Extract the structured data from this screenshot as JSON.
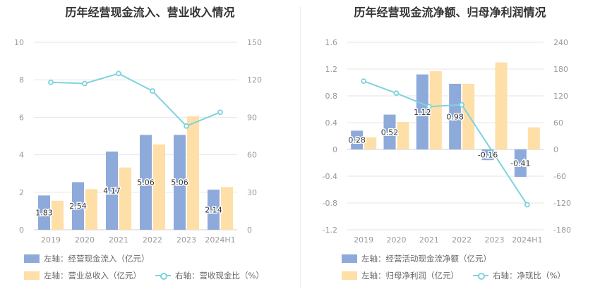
{
  "chart_data": [
    {
      "type": "bar",
      "title": "历年经营现金流入、营业收入情况",
      "categories": [
        "2019",
        "2020",
        "2021",
        "2022",
        "2023",
        "2024H1"
      ],
      "y_left": {
        "ticks": [
          "0",
          "2",
          "4",
          "6",
          "8",
          "10"
        ],
        "ylim": [
          0,
          10
        ]
      },
      "y_right": {
        "ticks": [
          "0",
          "30",
          "60",
          "90",
          "120",
          "150"
        ],
        "ylim": [
          0,
          150
        ]
      },
      "grid": true,
      "legend_position": "bottom",
      "series": [
        {
          "name": "左轴：经营现金流入（亿元）",
          "type": "bar",
          "axis": "left",
          "color": "#8eaadb",
          "values": [
            1.83,
            2.54,
            4.17,
            5.06,
            5.06,
            2.14
          ],
          "labels": [
            "1.83",
            "2.54",
            "4.17",
            "5.06",
            "5.06",
            "2.14"
          ]
        },
        {
          "name": "左轴：营业总收入（亿元）",
          "type": "bar",
          "axis": "left",
          "color": "#ffdfa8",
          "values": [
            1.55,
            2.17,
            3.32,
            4.55,
            6.05,
            2.28
          ]
        },
        {
          "name": "右轴：营收现金比（%）",
          "type": "line",
          "axis": "right",
          "color": "#7fd3dc",
          "values": [
            118,
            117,
            125,
            111,
            83,
            94
          ]
        }
      ]
    },
    {
      "type": "bar",
      "title": "历年经营现金流净额、归母净利润情况",
      "categories": [
        "2019",
        "2020",
        "2021",
        "2022",
        "2023",
        "2024H1"
      ],
      "y_left": {
        "ticks": [
          "-1.2",
          "-0.8",
          "-0.4",
          "0",
          "0.4",
          "0.8",
          "1.2",
          "1.6"
        ],
        "ylim": [
          -1.2,
          1.6
        ]
      },
      "y_right": {
        "ticks": [
          "-180",
          "-120",
          "-60",
          "0",
          "60",
          "120",
          "180",
          "240"
        ],
        "ylim": [
          -180,
          240
        ]
      },
      "grid": true,
      "legend_position": "bottom",
      "series": [
        {
          "name": "左轴：经营活动现金流净额（亿元）",
          "type": "bar",
          "axis": "left",
          "color": "#8eaadb",
          "values": [
            0.28,
            0.52,
            1.12,
            0.98,
            -0.16,
            -0.41
          ],
          "labels": [
            "0.28",
            "0.52",
            "1.12",
            "0.98",
            "-0.16",
            "-0.41"
          ]
        },
        {
          "name": "左轴：归母净利润（亿元）",
          "type": "bar",
          "axis": "left",
          "color": "#ffdfa8",
          "values": [
            0.18,
            0.41,
            1.17,
            0.98,
            1.3,
            0.33
          ]
        },
        {
          "name": "右轴：净现比（%）",
          "type": "line",
          "axis": "right",
          "color": "#7fd3dc",
          "values": [
            153,
            126,
            96,
            100,
            -12,
            -124
          ]
        }
      ]
    }
  ]
}
